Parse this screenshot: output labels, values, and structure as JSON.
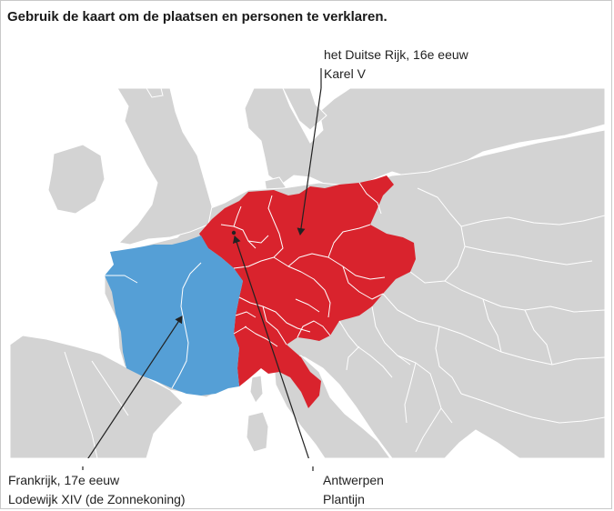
{
  "title": "Gebruik de kaart om de plaatsen en personen te verklaren.",
  "labels": {
    "reich": {
      "line1": "het Duitse Rijk, 16e eeuw",
      "line2": "Karel V"
    },
    "france": {
      "line1": "Frankrijk, 17e eeuw",
      "line2": "Lodewijk XIV (de Zonnekoning)"
    },
    "antwerp": {
      "line1": "Antwerpen",
      "line2": "Plantijn"
    }
  },
  "colors": {
    "land": "#d3d3d3",
    "sea": "#ffffff",
    "borders": "#ffffff",
    "reich": "#d9232d",
    "france": "#559fd6",
    "arrow": "#222222"
  }
}
